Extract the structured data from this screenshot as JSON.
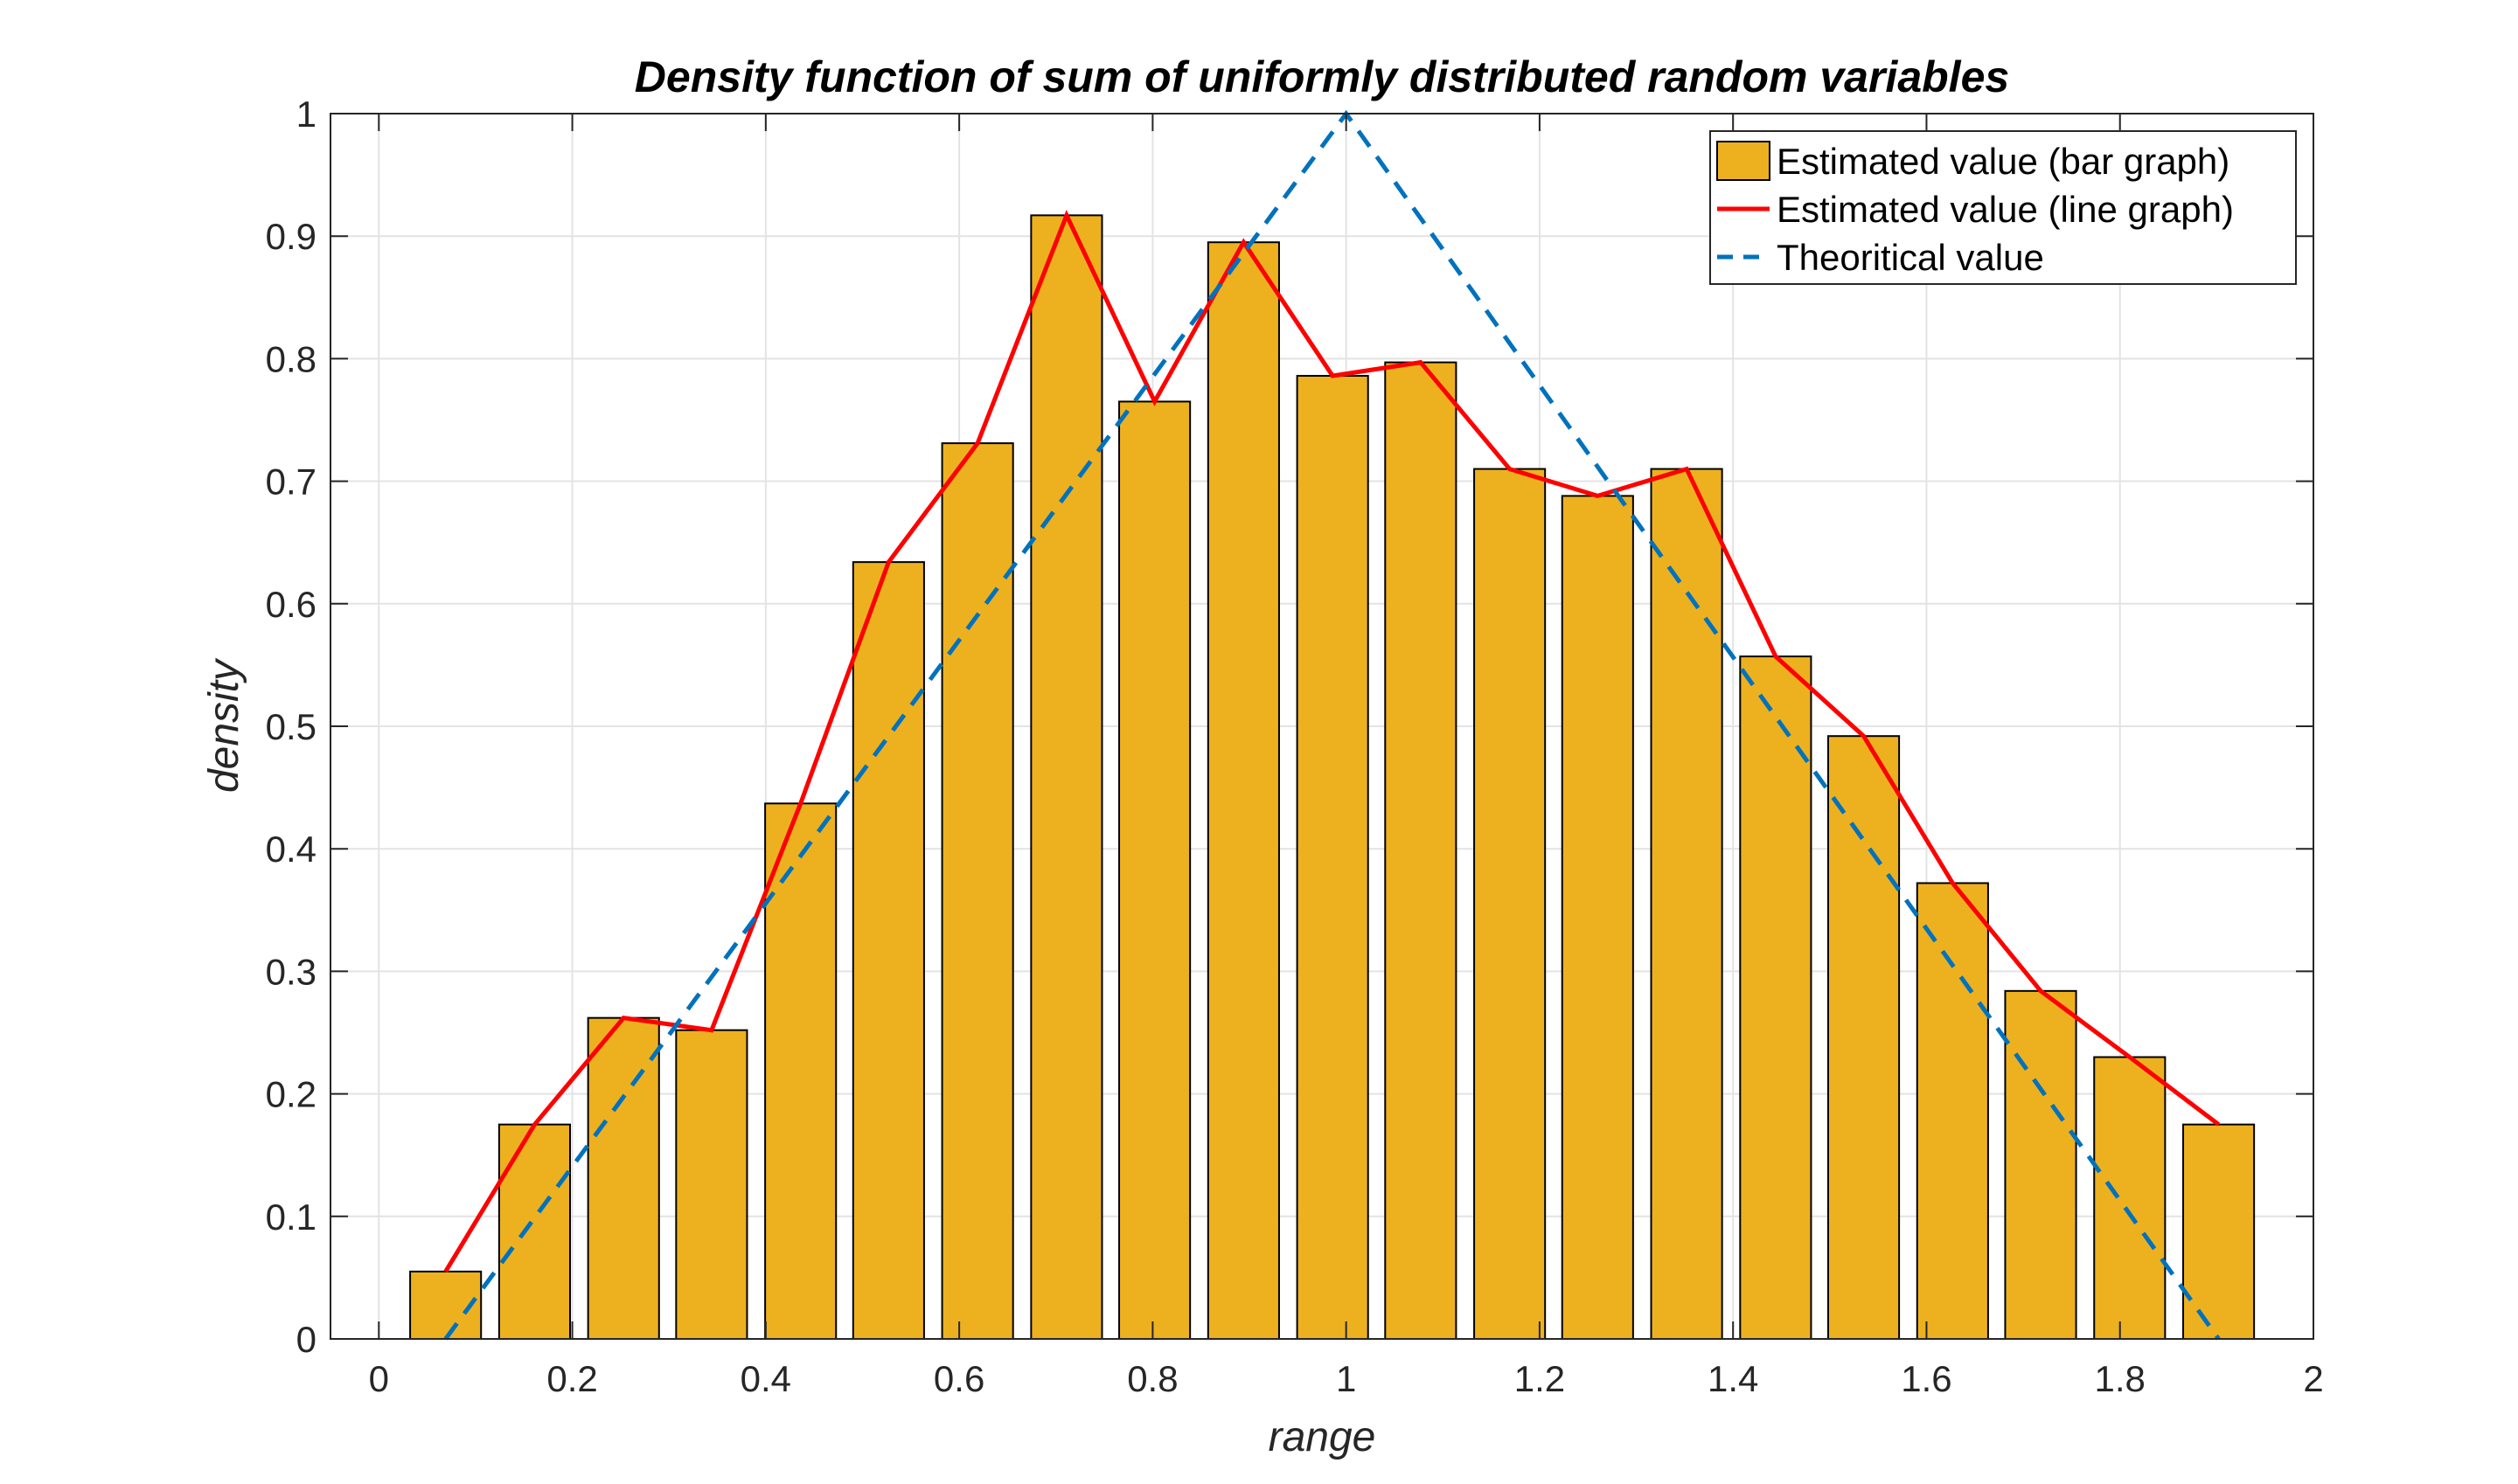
{
  "chart_data": {
    "type": "bar",
    "title": "Density function of sum of uniformly distributed random variables",
    "xlabel": "range",
    "ylabel": "density",
    "xlim": [
      -0.05,
      2.0
    ],
    "ylim": [
      0,
      1
    ],
    "xticks": [
      "0",
      "0.2",
      "0.4",
      "0.6",
      "0.8",
      "1",
      "1.2",
      "1.4",
      "1.6",
      "1.8",
      "2"
    ],
    "xtick_values": [
      0,
      0.2,
      0.4,
      0.6,
      0.8,
      1,
      1.2,
      1.4,
      1.6,
      1.8,
      2
    ],
    "yticks": [
      "0",
      "0.1",
      "0.2",
      "0.3",
      "0.4",
      "0.5",
      "0.6",
      "0.7",
      "0.8",
      "0.9",
      "1"
    ],
    "ytick_values": [
      0,
      0.1,
      0.2,
      0.3,
      0.4,
      0.5,
      0.6,
      0.7,
      0.8,
      0.9,
      1
    ],
    "grid": true,
    "legend_position": "top-right",
    "x": [
      0.069,
      0.161,
      0.253,
      0.344,
      0.436,
      0.527,
      0.619,
      0.711,
      0.802,
      0.894,
      0.986,
      1.077,
      1.169,
      1.26,
      1.352,
      1.444,
      1.535,
      1.627,
      1.718,
      1.81,
      1.902
    ],
    "series": [
      {
        "name": "Estimated value (bar graph)",
        "type": "bar",
        "color": "#EDB120",
        "values": [
          0.055,
          0.175,
          0.262,
          0.252,
          0.437,
          0.634,
          0.731,
          0.917,
          0.765,
          0.895,
          0.786,
          0.797,
          0.71,
          0.688,
          0.71,
          0.557,
          0.492,
          0.372,
          0.284,
          0.23,
          0.175
        ]
      },
      {
        "name": "Estimated value (line graph)",
        "type": "line",
        "color": "#FF0000",
        "values": [
          0.055,
          0.175,
          0.262,
          0.252,
          0.437,
          0.634,
          0.731,
          0.917,
          0.765,
          0.895,
          0.786,
          0.797,
          0.71,
          0.688,
          0.71,
          0.557,
          0.492,
          0.372,
          0.284,
          0.23,
          0.175
        ]
      },
      {
        "name": "Theoritical value",
        "type": "line-dashed",
        "color": "#0072BD",
        "x": [
          0.069,
          1.0,
          1.902
        ],
        "values": [
          0,
          1,
          0
        ]
      }
    ]
  }
}
